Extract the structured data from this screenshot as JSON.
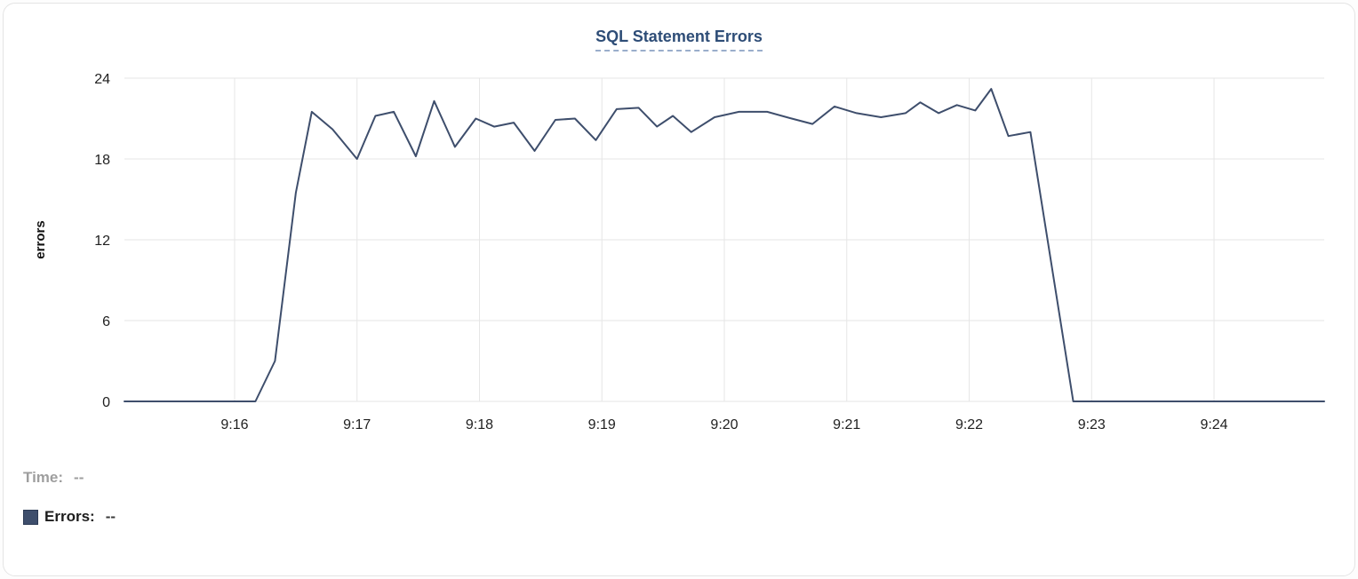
{
  "header": {
    "title": "SQL Statement Errors"
  },
  "legend": {
    "time_label": "Time:",
    "time_value": "--",
    "errors_label": "Errors:",
    "errors_value": "--"
  },
  "colors": {
    "series_line": "#3e4e6c",
    "grid": "#e6e6e6",
    "title_link": "#2e4d77"
  },
  "chart_data": {
    "type": "line",
    "title": "SQL Statement Errors",
    "xlabel": "",
    "ylabel": "errors",
    "ylim": [
      0,
      24
    ],
    "y_ticks": [
      0,
      6,
      12,
      18,
      24
    ],
    "grid": true,
    "legend_position": "bottom-left",
    "x_domain_minutes": [
      15.1,
      24.9
    ],
    "x_ticks": [
      {
        "value": 16,
        "label": "9:16"
      },
      {
        "value": 17,
        "label": "9:17"
      },
      {
        "value": 18,
        "label": "9:18"
      },
      {
        "value": 19,
        "label": "9:19"
      },
      {
        "value": 20,
        "label": "9:20"
      },
      {
        "value": 21,
        "label": "9:21"
      },
      {
        "value": 22,
        "label": "9:22"
      },
      {
        "value": 23,
        "label": "9:23"
      },
      {
        "value": 24,
        "label": "9:24"
      }
    ],
    "series": [
      {
        "name": "Errors",
        "color": "#3e4e6c",
        "points_format": "[minute_of_hour_9, errors]",
        "points": [
          [
            15.1,
            0
          ],
          [
            15.5,
            0
          ],
          [
            16.0,
            0
          ],
          [
            16.17,
            0
          ],
          [
            16.33,
            3.0
          ],
          [
            16.5,
            15.5
          ],
          [
            16.63,
            21.5
          ],
          [
            16.8,
            20.2
          ],
          [
            17.0,
            18.0
          ],
          [
            17.15,
            21.2
          ],
          [
            17.3,
            21.5
          ],
          [
            17.48,
            18.2
          ],
          [
            17.63,
            22.3
          ],
          [
            17.8,
            18.9
          ],
          [
            17.97,
            21.0
          ],
          [
            18.12,
            20.4
          ],
          [
            18.28,
            20.7
          ],
          [
            18.45,
            18.6
          ],
          [
            18.62,
            20.9
          ],
          [
            18.78,
            21.0
          ],
          [
            18.95,
            19.4
          ],
          [
            19.12,
            21.7
          ],
          [
            19.3,
            21.8
          ],
          [
            19.45,
            20.4
          ],
          [
            19.58,
            21.2
          ],
          [
            19.73,
            20.0
          ],
          [
            19.92,
            21.1
          ],
          [
            20.12,
            21.5
          ],
          [
            20.35,
            21.5
          ],
          [
            20.55,
            21.0
          ],
          [
            20.72,
            20.6
          ],
          [
            20.9,
            21.9
          ],
          [
            21.08,
            21.4
          ],
          [
            21.28,
            21.1
          ],
          [
            21.48,
            21.4
          ],
          [
            21.6,
            22.2
          ],
          [
            21.75,
            21.4
          ],
          [
            21.9,
            22.0
          ],
          [
            22.05,
            21.6
          ],
          [
            22.18,
            23.2
          ],
          [
            22.32,
            19.7
          ],
          [
            22.5,
            20.0
          ],
          [
            22.85,
            0
          ],
          [
            23.2,
            0
          ],
          [
            23.6,
            0
          ],
          [
            24.0,
            0
          ],
          [
            24.5,
            0
          ],
          [
            24.9,
            0
          ]
        ]
      }
    ]
  }
}
